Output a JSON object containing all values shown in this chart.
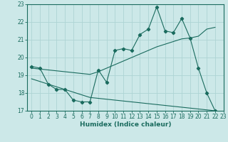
{
  "bg_color": "#cce8e8",
  "line_color": "#1a6b5e",
  "grid_color": "#aed4d4",
  "xlabel": "Humidex (Indice chaleur)",
  "xlim": [
    -0.5,
    23
  ],
  "ylim": [
    17,
    23
  ],
  "yticks": [
    17,
    18,
    19,
    20,
    21,
    22,
    23
  ],
  "xticks": [
    0,
    1,
    2,
    3,
    4,
    5,
    6,
    7,
    8,
    9,
    10,
    11,
    12,
    13,
    14,
    15,
    16,
    17,
    18,
    19,
    20,
    21,
    22,
    23
  ],
  "main_x": [
    0,
    1,
    2,
    3,
    4,
    5,
    6,
    7,
    8,
    9,
    10,
    11,
    12,
    13,
    14,
    15,
    16,
    17,
    18,
    19,
    20,
    21,
    22
  ],
  "main_y": [
    19.5,
    19.4,
    18.5,
    18.2,
    18.2,
    17.6,
    17.5,
    17.5,
    19.3,
    18.6,
    20.4,
    20.5,
    20.4,
    21.3,
    21.6,
    22.85,
    21.5,
    21.4,
    22.2,
    21.1,
    19.4,
    18.0,
    17.0
  ],
  "upper_x": [
    0,
    1,
    2,
    3,
    4,
    5,
    6,
    7,
    8,
    9,
    10,
    11,
    12,
    13,
    14,
    15,
    16,
    17,
    18,
    19,
    20,
    21,
    22
  ],
  "upper_y": [
    19.4,
    19.35,
    19.3,
    19.25,
    19.2,
    19.15,
    19.1,
    19.05,
    19.2,
    19.4,
    19.6,
    19.8,
    20.0,
    20.2,
    20.4,
    20.6,
    20.75,
    20.9,
    21.05,
    21.1,
    21.2,
    21.6,
    21.7
  ],
  "lower_x": [
    0,
    1,
    2,
    3,
    4,
    5,
    6,
    7,
    8,
    9,
    10,
    11,
    12,
    13,
    14,
    15,
    16,
    17,
    18,
    19,
    20,
    21,
    22
  ],
  "lower_y": [
    18.8,
    18.65,
    18.5,
    18.35,
    18.2,
    18.05,
    17.9,
    17.75,
    17.7,
    17.65,
    17.6,
    17.55,
    17.5,
    17.45,
    17.4,
    17.35,
    17.3,
    17.25,
    17.2,
    17.15,
    17.1,
    17.05,
    17.0
  ]
}
